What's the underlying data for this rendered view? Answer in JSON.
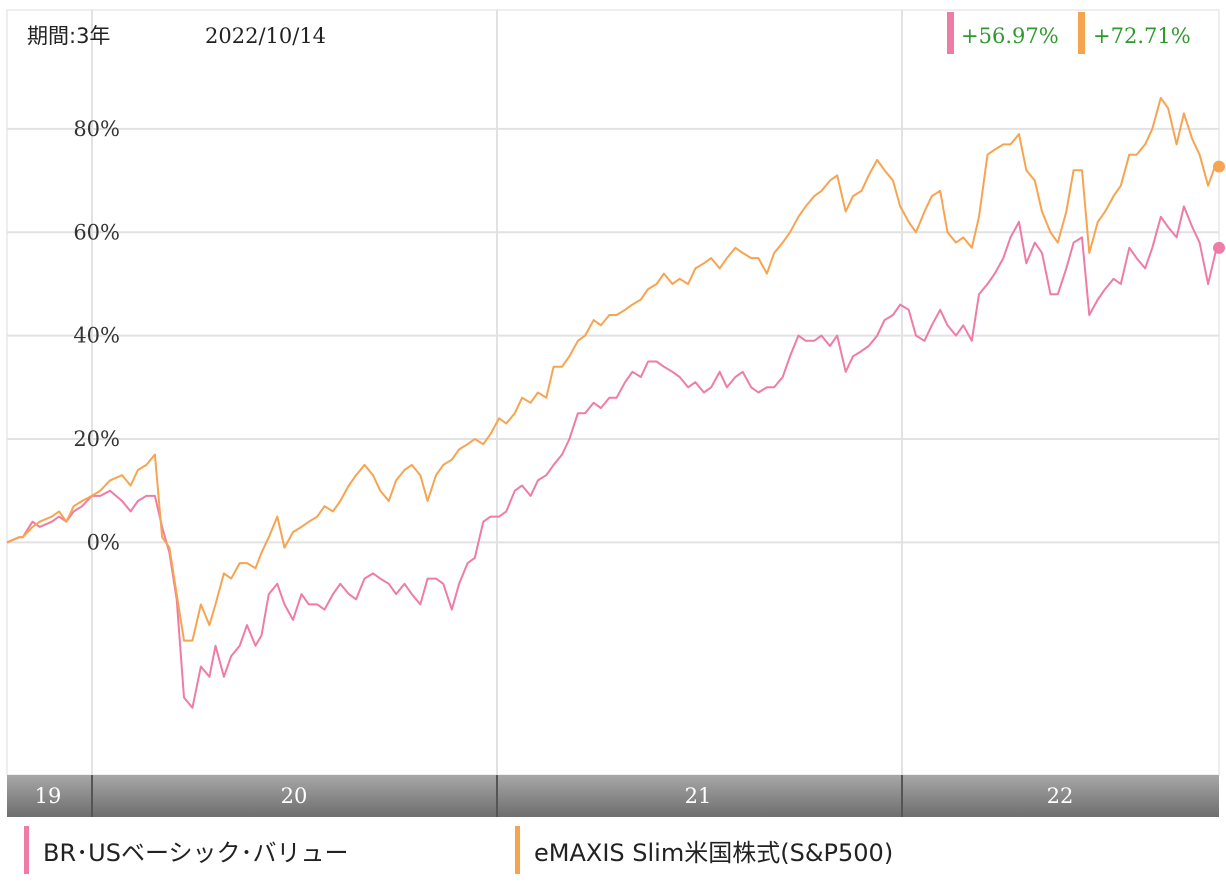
{
  "header": {
    "period_label": "期間:3年",
    "date_label": "2022/10/14"
  },
  "legend": [
    {
      "name": "BR･USベーシック･バリュー",
      "color": "#ef7ca6",
      "change": "+56.97%"
    },
    {
      "name": "eMAXIS Slim米国株式(S&P500)",
      "color": "#f7a451",
      "change": "+72.71%"
    }
  ],
  "chart_data": {
    "type": "line",
    "ylim": [
      -45,
      103
    ],
    "y_ticks": [
      0,
      20,
      40,
      60,
      80
    ],
    "y_tick_labels": [
      "0%",
      "20%",
      "40%",
      "60%",
      "80%"
    ],
    "x_year_labels": [
      "19",
      "20",
      "21",
      "22"
    ],
    "grid": true,
    "series": [
      {
        "name": "BR･USベーシック･バリュー",
        "color": "#ef7ca6",
        "last_value": 56.97,
        "points": [
          [
            0.0,
            0
          ],
          [
            1.0,
            1
          ],
          [
            1.3,
            1
          ],
          [
            2.1,
            4
          ],
          [
            2.7,
            3
          ],
          [
            3.7,
            4
          ],
          [
            4.3,
            5
          ],
          [
            4.9,
            4
          ],
          [
            5.5,
            6
          ],
          [
            6.2,
            7
          ],
          [
            7.0,
            9
          ],
          [
            7.7,
            9
          ],
          [
            8.5,
            10
          ],
          [
            9.5,
            8
          ],
          [
            10.2,
            6
          ],
          [
            10.8,
            8
          ],
          [
            11.5,
            9
          ],
          [
            12.2,
            9
          ],
          [
            12.8,
            3
          ],
          [
            13.4,
            -2
          ],
          [
            14.0,
            -11
          ],
          [
            14.6,
            -30
          ],
          [
            15.3,
            -32
          ],
          [
            16.0,
            -24
          ],
          [
            16.7,
            -26
          ],
          [
            17.2,
            -20
          ],
          [
            17.9,
            -26
          ],
          [
            18.5,
            -22
          ],
          [
            19.2,
            -20
          ],
          [
            19.8,
            -16
          ],
          [
            20.5,
            -20
          ],
          [
            21.0,
            -18
          ],
          [
            21.6,
            -10
          ],
          [
            22.3,
            -8
          ],
          [
            22.9,
            -12
          ],
          [
            23.6,
            -15
          ],
          [
            24.3,
            -10
          ],
          [
            24.9,
            -12
          ],
          [
            25.6,
            -12
          ],
          [
            26.2,
            -13
          ],
          [
            26.9,
            -10
          ],
          [
            27.5,
            -8
          ],
          [
            28.2,
            -10
          ],
          [
            28.8,
            -11
          ],
          [
            29.5,
            -7
          ],
          [
            30.2,
            -6
          ],
          [
            30.8,
            -7
          ],
          [
            31.5,
            -8
          ],
          [
            32.1,
            -10
          ],
          [
            32.8,
            -8
          ],
          [
            33.4,
            -10
          ],
          [
            34.1,
            -12
          ],
          [
            34.7,
            -7
          ],
          [
            35.4,
            -7
          ],
          [
            36.0,
            -8
          ],
          [
            36.7,
            -13
          ],
          [
            37.3,
            -8
          ],
          [
            38.0,
            -4
          ],
          [
            38.6,
            -3
          ],
          [
            39.3,
            4
          ],
          [
            39.9,
            5
          ],
          [
            40.6,
            5
          ],
          [
            41.2,
            6
          ],
          [
            41.9,
            10
          ],
          [
            42.5,
            11
          ],
          [
            43.2,
            9
          ],
          [
            43.8,
            12
          ],
          [
            44.5,
            13
          ],
          [
            45.1,
            15
          ],
          [
            45.8,
            17
          ],
          [
            46.4,
            20
          ],
          [
            47.1,
            25
          ],
          [
            47.7,
            25
          ],
          [
            48.4,
            27
          ],
          [
            49.0,
            26
          ],
          [
            49.7,
            28
          ],
          [
            50.3,
            28
          ],
          [
            51.0,
            31
          ],
          [
            51.6,
            33
          ],
          [
            52.3,
            32
          ],
          [
            52.9,
            35
          ],
          [
            53.6,
            35
          ],
          [
            54.2,
            34
          ],
          [
            54.9,
            33
          ],
          [
            55.5,
            32
          ],
          [
            56.2,
            30
          ],
          [
            56.8,
            31
          ],
          [
            57.5,
            29
          ],
          [
            58.1,
            30
          ],
          [
            58.8,
            33
          ],
          [
            59.4,
            30
          ],
          [
            60.1,
            32
          ],
          [
            60.7,
            33
          ],
          [
            61.4,
            30
          ],
          [
            62.0,
            29
          ],
          [
            62.7,
            30
          ],
          [
            63.3,
            30
          ],
          [
            64.0,
            32
          ],
          [
            64.6,
            36
          ],
          [
            65.3,
            40
          ],
          [
            65.9,
            39
          ],
          [
            66.6,
            39
          ],
          [
            67.2,
            40
          ],
          [
            67.9,
            38
          ],
          [
            68.5,
            40
          ],
          [
            69.2,
            33
          ],
          [
            69.8,
            36
          ],
          [
            70.5,
            37
          ],
          [
            71.1,
            38
          ],
          [
            71.8,
            40
          ],
          [
            72.4,
            43
          ],
          [
            73.1,
            44
          ],
          [
            73.7,
            46
          ],
          [
            74.4,
            45
          ],
          [
            75.0,
            40
          ],
          [
            75.7,
            39
          ],
          [
            76.3,
            42
          ],
          [
            77.0,
            45
          ],
          [
            77.6,
            42
          ],
          [
            78.3,
            40
          ],
          [
            78.9,
            42
          ],
          [
            79.6,
            39
          ],
          [
            80.2,
            48
          ],
          [
            80.9,
            50
          ],
          [
            81.5,
            52
          ],
          [
            82.2,
            55
          ],
          [
            82.8,
            59
          ],
          [
            83.5,
            62
          ],
          [
            84.1,
            54
          ],
          [
            84.8,
            58
          ],
          [
            85.4,
            56
          ],
          [
            86.1,
            48
          ],
          [
            86.7,
            48
          ],
          [
            87.4,
            53
          ],
          [
            88.0,
            58
          ],
          [
            88.7,
            59
          ],
          [
            89.3,
            44
          ],
          [
            90.0,
            47
          ],
          [
            90.6,
            49
          ],
          [
            91.3,
            51
          ],
          [
            91.9,
            50
          ],
          [
            92.6,
            57
          ],
          [
            93.2,
            55
          ],
          [
            93.9,
            53
          ],
          [
            94.5,
            57
          ],
          [
            95.2,
            63
          ],
          [
            95.8,
            61
          ],
          [
            96.5,
            59
          ],
          [
            97.1,
            65
          ],
          [
            97.8,
            61
          ],
          [
            98.4,
            58
          ],
          [
            99.1,
            50
          ],
          [
            99.7,
            56
          ],
          [
            100.0,
            57
          ]
        ]
      },
      {
        "name": "eMAXIS Slim米国株式(S&P500)",
        "color": "#f7a451",
        "last_value": 72.71,
        "points": [
          [
            0.0,
            0
          ],
          [
            1.0,
            1
          ],
          [
            1.3,
            1
          ],
          [
            2.1,
            3
          ],
          [
            2.7,
            4
          ],
          [
            3.7,
            5
          ],
          [
            4.3,
            6
          ],
          [
            4.9,
            4
          ],
          [
            5.5,
            7
          ],
          [
            6.2,
            8
          ],
          [
            7.0,
            9
          ],
          [
            7.7,
            10
          ],
          [
            8.5,
            12
          ],
          [
            9.5,
            13
          ],
          [
            10.2,
            11
          ],
          [
            10.8,
            14
          ],
          [
            11.5,
            15
          ],
          [
            12.2,
            17
          ],
          [
            12.8,
            1
          ],
          [
            13.4,
            -1
          ],
          [
            14.0,
            -10
          ],
          [
            14.6,
            -19
          ],
          [
            15.3,
            -19
          ],
          [
            16.0,
            -12
          ],
          [
            16.7,
            -16
          ],
          [
            17.2,
            -12
          ],
          [
            17.9,
            -6
          ],
          [
            18.5,
            -7
          ],
          [
            19.2,
            -4
          ],
          [
            19.8,
            -4
          ],
          [
            20.5,
            -5
          ],
          [
            21.0,
            -2
          ],
          [
            21.6,
            1
          ],
          [
            22.3,
            5
          ],
          [
            22.9,
            -1
          ],
          [
            23.6,
            2
          ],
          [
            24.3,
            3
          ],
          [
            24.9,
            4
          ],
          [
            25.6,
            5
          ],
          [
            26.2,
            7
          ],
          [
            26.9,
            6
          ],
          [
            27.5,
            8
          ],
          [
            28.2,
            11
          ],
          [
            28.8,
            13
          ],
          [
            29.5,
            15
          ],
          [
            30.2,
            13
          ],
          [
            30.8,
            10
          ],
          [
            31.5,
            8
          ],
          [
            32.1,
            12
          ],
          [
            32.8,
            14
          ],
          [
            33.4,
            15
          ],
          [
            34.1,
            13
          ],
          [
            34.7,
            8
          ],
          [
            35.4,
            13
          ],
          [
            36.0,
            15
          ],
          [
            36.7,
            16
          ],
          [
            37.3,
            18
          ],
          [
            38.0,
            19
          ],
          [
            38.6,
            20
          ],
          [
            39.3,
            19
          ],
          [
            39.9,
            21
          ],
          [
            40.6,
            24
          ],
          [
            41.2,
            23
          ],
          [
            41.9,
            25
          ],
          [
            42.5,
            28
          ],
          [
            43.2,
            27
          ],
          [
            43.8,
            29
          ],
          [
            44.5,
            28
          ],
          [
            45.1,
            34
          ],
          [
            45.8,
            34
          ],
          [
            46.4,
            36
          ],
          [
            47.1,
            39
          ],
          [
            47.7,
            40
          ],
          [
            48.4,
            43
          ],
          [
            49.0,
            42
          ],
          [
            49.7,
            44
          ],
          [
            50.3,
            44
          ],
          [
            51.0,
            45
          ],
          [
            51.6,
            46
          ],
          [
            52.3,
            47
          ],
          [
            52.9,
            49
          ],
          [
            53.6,
            50
          ],
          [
            54.2,
            52
          ],
          [
            54.9,
            50
          ],
          [
            55.5,
            51
          ],
          [
            56.2,
            50
          ],
          [
            56.8,
            53
          ],
          [
            57.5,
            54
          ],
          [
            58.1,
            55
          ],
          [
            58.8,
            53
          ],
          [
            59.4,
            55
          ],
          [
            60.1,
            57
          ],
          [
            60.7,
            56
          ],
          [
            61.4,
            55
          ],
          [
            62.0,
            55
          ],
          [
            62.7,
            52
          ],
          [
            63.3,
            56
          ],
          [
            64.0,
            58
          ],
          [
            64.6,
            60
          ],
          [
            65.3,
            63
          ],
          [
            65.9,
            65
          ],
          [
            66.6,
            67
          ],
          [
            67.2,
            68
          ],
          [
            67.9,
            70
          ],
          [
            68.5,
            71
          ],
          [
            69.2,
            64
          ],
          [
            69.8,
            67
          ],
          [
            70.5,
            68
          ],
          [
            71.1,
            71
          ],
          [
            71.8,
            74
          ],
          [
            72.4,
            72
          ],
          [
            73.1,
            70
          ],
          [
            73.7,
            65
          ],
          [
            74.4,
            62
          ],
          [
            75.0,
            60
          ],
          [
            75.7,
            64
          ],
          [
            76.3,
            67
          ],
          [
            77.0,
            68
          ],
          [
            77.6,
            60
          ],
          [
            78.3,
            58
          ],
          [
            78.9,
            59
          ],
          [
            79.6,
            57
          ],
          [
            80.2,
            63
          ],
          [
            80.9,
            75
          ],
          [
            81.5,
            76
          ],
          [
            82.2,
            77
          ],
          [
            82.8,
            77
          ],
          [
            83.5,
            79
          ],
          [
            84.1,
            72
          ],
          [
            84.8,
            70
          ],
          [
            85.4,
            64
          ],
          [
            86.1,
            60
          ],
          [
            86.7,
            58
          ],
          [
            87.4,
            64
          ],
          [
            88.0,
            72
          ],
          [
            88.7,
            72
          ],
          [
            89.3,
            56
          ],
          [
            90.0,
            62
          ],
          [
            90.6,
            64
          ],
          [
            91.3,
            67
          ],
          [
            91.9,
            69
          ],
          [
            92.6,
            75
          ],
          [
            93.2,
            75
          ],
          [
            93.9,
            77
          ],
          [
            94.5,
            80
          ],
          [
            95.2,
            86
          ],
          [
            95.8,
            84
          ],
          [
            96.5,
            77
          ],
          [
            97.1,
            83
          ],
          [
            97.8,
            78
          ],
          [
            98.4,
            75
          ],
          [
            99.1,
            69
          ],
          [
            99.7,
            73
          ],
          [
            100.0,
            72.7
          ]
        ]
      }
    ]
  }
}
